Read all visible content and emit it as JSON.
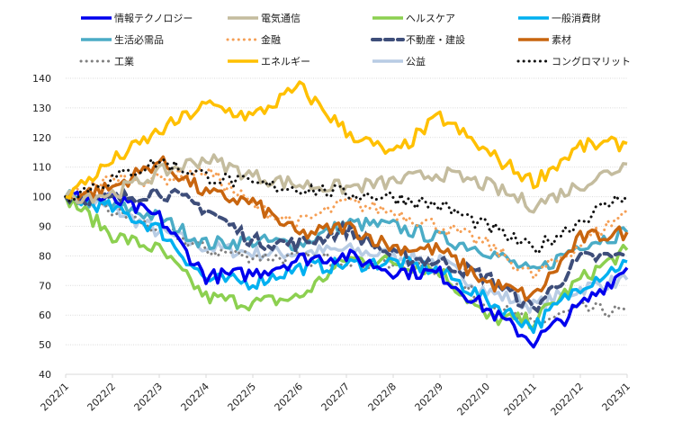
{
  "chart_data": {
    "type": "line",
    "title": "",
    "xlabel": "",
    "ylabel": "",
    "ylim": [
      40,
      140
    ],
    "yticks": [
      40,
      50,
      60,
      70,
      80,
      90,
      100,
      110,
      120,
      130,
      140
    ],
    "grid": true,
    "legend_position": "top",
    "x": [
      "2022/1",
      "2022/2",
      "2022/3",
      "2022/4",
      "2022/5",
      "2022/6",
      "2022/7",
      "2022/8",
      "2022/9",
      "2022/10",
      "2022/11",
      "2022/12",
      "2023/1"
    ],
    "series": [
      {
        "name": "情報テクノロジー",
        "color": "#0000ee",
        "style": "solid",
        "values": [
          100,
          99,
          93,
          73,
          74,
          79,
          80,
          75,
          74,
          62,
          51,
          63,
          76
        ]
      },
      {
        "name": "電気通信",
        "color": "#c4bc9e",
        "style": "solid",
        "values": [
          100,
          101,
          108,
          113,
          107,
          104,
          103,
          105,
          108,
          104,
          97,
          104,
          111
        ]
      },
      {
        "name": "ヘルスケア",
        "color": "#8cd050",
        "style": "solid",
        "values": [
          100,
          87,
          82,
          66,
          64,
          66,
          79,
          78,
          75,
          59,
          58,
          72,
          82
        ]
      },
      {
        "name": "一般消費財",
        "color": "#00b0f0",
        "style": "solid",
        "values": [
          100,
          96,
          89,
          72,
          71,
          76,
          77,
          78,
          75,
          65,
          56,
          70,
          78
        ]
      },
      {
        "name": "生活必需品",
        "color": "#4bacc6",
        "style": "solid",
        "values": [
          100,
          97,
          93,
          84,
          85,
          84,
          91,
          90,
          86,
          82,
          74,
          84,
          88
        ]
      },
      {
        "name": "金融",
        "color": "#f59f55",
        "style": "dotted",
        "values": [
          100,
          106,
          106,
          109,
          97,
          91,
          98,
          95,
          90,
          84,
          73,
          84,
          95
        ]
      },
      {
        "name": "不動産・建設",
        "color": "#3e4e7a",
        "style": "dashed",
        "values": [
          100,
          99,
          102,
          96,
          85,
          84,
          89,
          80,
          78,
          73,
          62,
          79,
          80
        ]
      },
      {
        "name": "素材",
        "color": "#c8650f",
        "style": "solid",
        "values": [
          100,
          103,
          112,
          101,
          98,
          87,
          90,
          83,
          82,
          71,
          66,
          86,
          88
        ]
      },
      {
        "name": "工業",
        "color": "#808080",
        "style": "dotted",
        "values": [
          100,
          95,
          89,
          82,
          80,
          79,
          79,
          76,
          75,
          64,
          57,
          62,
          61
        ]
      },
      {
        "name": "エネルギー",
        "color": "#ffc000",
        "style": "solid",
        "values": [
          100,
          112,
          122,
          131,
          127,
          137,
          122,
          114,
          127,
          115,
          105,
          117,
          118
        ]
      },
      {
        "name": "公益",
        "color": "#b8cce4",
        "style": "solid",
        "values": [
          100,
          96,
          88,
          83,
          81,
          81,
          82,
          80,
          78,
          68,
          63,
          69,
          72
        ]
      },
      {
        "name": "コングロマリット",
        "color": "#111111",
        "style": "dotted",
        "values": [
          100,
          106,
          112,
          107,
          104,
          103,
          101,
          100,
          97,
          90,
          82,
          92,
          101
        ]
      }
    ]
  }
}
